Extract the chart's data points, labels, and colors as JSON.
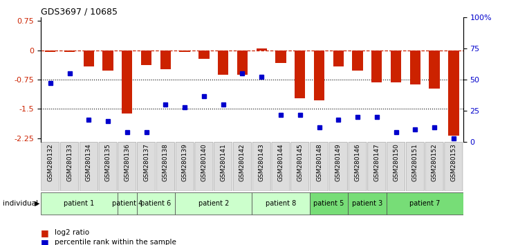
{
  "title": "GDS3697 / 10685",
  "samples": [
    "GSM280132",
    "GSM280133",
    "GSM280134",
    "GSM280135",
    "GSM280136",
    "GSM280137",
    "GSM280138",
    "GSM280139",
    "GSM280140",
    "GSM280141",
    "GSM280142",
    "GSM280143",
    "GSM280144",
    "GSM280145",
    "GSM280148",
    "GSM280149",
    "GSM280146",
    "GSM280147",
    "GSM280150",
    "GSM280151",
    "GSM280152",
    "GSM280153"
  ],
  "log2_ratio": [
    -0.04,
    -0.04,
    -0.42,
    -0.52,
    -1.62,
    -0.38,
    -0.48,
    -0.04,
    -0.22,
    -0.62,
    -0.62,
    0.04,
    -0.32,
    -1.22,
    -1.28,
    -0.42,
    -0.52,
    -0.82,
    -0.82,
    -0.88,
    -0.98,
    -2.18
  ],
  "percentile": [
    47,
    55,
    18,
    17,
    8,
    8,
    30,
    28,
    37,
    30,
    55,
    52,
    22,
    22,
    12,
    18,
    20,
    20,
    8,
    10,
    12,
    3
  ],
  "patient_groups": [
    {
      "label": "patient 1",
      "start": 0,
      "end": 4,
      "color": "#ccffcc"
    },
    {
      "label": "patient 4",
      "start": 4,
      "end": 5,
      "color": "#ccffcc"
    },
    {
      "label": "patient 6",
      "start": 5,
      "end": 7,
      "color": "#ccffcc"
    },
    {
      "label": "patient 2",
      "start": 7,
      "end": 11,
      "color": "#ccffcc"
    },
    {
      "label": "patient 8",
      "start": 11,
      "end": 14,
      "color": "#ccffcc"
    },
    {
      "label": "patient 5",
      "start": 14,
      "end": 16,
      "color": "#77dd77"
    },
    {
      "label": "patient 3",
      "start": 16,
      "end": 18,
      "color": "#77dd77"
    },
    {
      "label": "patient 7",
      "start": 18,
      "end": 22,
      "color": "#77dd77"
    }
  ],
  "bar_color": "#cc2200",
  "dot_color": "#0000cc",
  "ylim_left": [
    -2.35,
    0.85
  ],
  "ylim_right": [
    0,
    100
  ],
  "yticks_left": [
    0.75,
    0.0,
    -0.75,
    -1.5,
    -2.25
  ],
  "yticks_right": [
    100,
    75,
    50,
    25,
    0
  ],
  "dotted_lines": [
    -0.75,
    -1.5
  ],
  "bg_color": "#ffffff"
}
